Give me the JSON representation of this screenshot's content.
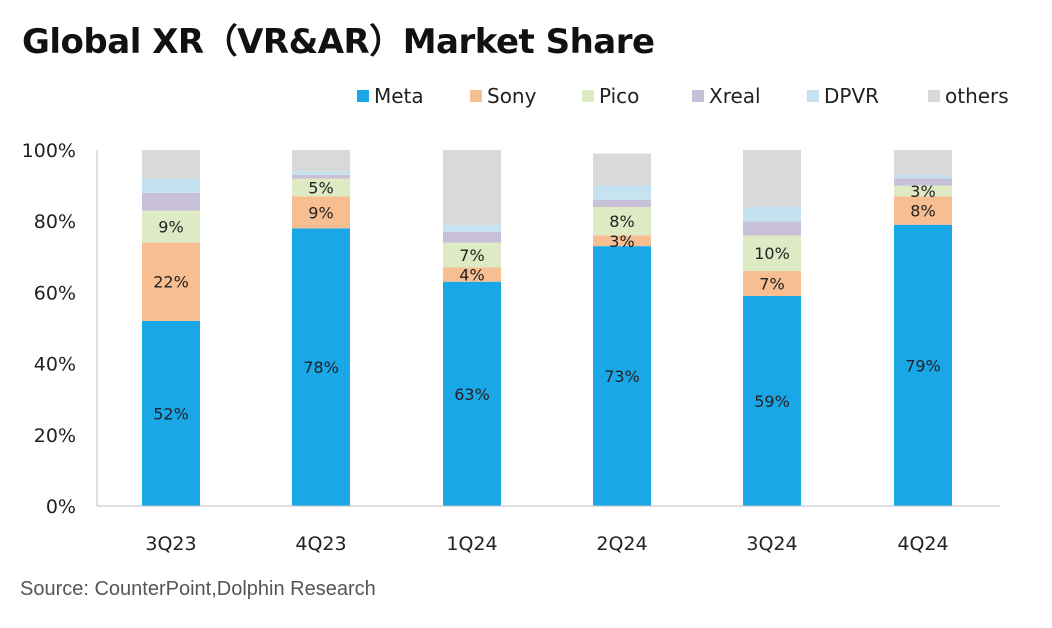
{
  "chart_data": {
    "type": "bar",
    "stacked": true,
    "title": "Global XR（VR&AR）Market Share",
    "categories": [
      "3Q23",
      "4Q23",
      "1Q24",
      "2Q24",
      "3Q24",
      "4Q24"
    ],
    "series": [
      {
        "name": "Meta",
        "color": "#1aa7e8",
        "values": [
          52,
          78,
          63,
          73,
          59,
          79
        ],
        "labels": [
          "52%",
          "78%",
          "63%",
          "73%",
          "59%",
          "79%"
        ]
      },
      {
        "name": "Sony",
        "color": "#f7be91",
        "values": [
          22,
          9,
          4,
          3,
          7,
          8
        ],
        "labels": [
          "22%",
          "9%",
          "4%",
          "3%",
          "7%",
          "8%"
        ]
      },
      {
        "name": "Pico",
        "color": "#deeac4",
        "values": [
          9,
          5,
          7,
          8,
          10,
          3
        ],
        "labels": [
          "9%",
          "5%",
          "7%",
          "8%",
          "10%",
          "3%"
        ]
      },
      {
        "name": "Xreal",
        "color": "#c8c0d8",
        "values": [
          5,
          1,
          3,
          2,
          4,
          2
        ],
        "labels": [
          "",
          "",
          "",
          "",
          "",
          ""
        ]
      },
      {
        "name": "DPVR",
        "color": "#c5e2f0",
        "values": [
          4,
          1,
          2,
          4,
          4,
          1
        ],
        "labels": [
          "",
          "",
          "",
          "",
          "",
          ""
        ]
      },
      {
        "name": "others",
        "color": "#d9d9d9",
        "values": [
          8,
          6,
          21,
          9,
          16,
          7
        ],
        "labels": [
          "",
          "",
          "",
          "",
          "",
          ""
        ]
      }
    ],
    "y_ticks": [
      "0%",
      "20%",
      "40%",
      "60%",
      "80%",
      "100%"
    ],
    "ylim": [
      0,
      100
    ],
    "legend_position": "top-right",
    "grid": false
  },
  "source": "Source: CounterPoint,Dolphin Research"
}
